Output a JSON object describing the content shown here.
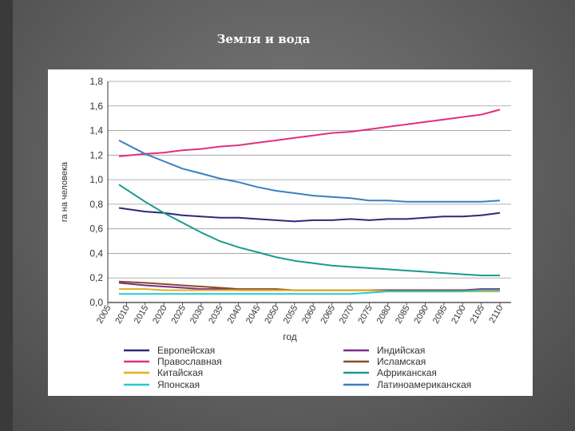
{
  "slide": {
    "title": "Земля и вода"
  },
  "chart_data": {
    "type": "line",
    "title": "",
    "xlabel": "год",
    "ylabel": "га на человека",
    "xlim": [
      2005,
      2113
    ],
    "ylim": [
      0,
      1.8
    ],
    "grid": true,
    "legend_position": "bottom",
    "x_ticks": [
      2005,
      2010,
      2015,
      2020,
      2025,
      2030,
      2035,
      2040,
      2045,
      2050,
      2055,
      2060,
      2065,
      2070,
      2075,
      2080,
      2085,
      2090,
      2095,
      2100,
      2105,
      2110
    ],
    "y_ticks": [
      0.0,
      0.2,
      0.4,
      0.6,
      0.8,
      1.0,
      1.2,
      1.4,
      1.6,
      1.8
    ],
    "y_tick_labels": [
      "0,0",
      "0,2",
      "0,4",
      "0,6",
      "0,8",
      "1,0",
      "1,2",
      "1,4",
      "1,6",
      "1,8"
    ],
    "x": [
      2008,
      2015,
      2020,
      2025,
      2030,
      2035,
      2040,
      2045,
      2050,
      2055,
      2060,
      2065,
      2070,
      2075,
      2080,
      2085,
      2090,
      2095,
      2100,
      2105,
      2110
    ],
    "series": [
      {
        "name": "Европейская",
        "color": "#2b2a7a",
        "values": [
          0.77,
          0.74,
          0.73,
          0.71,
          0.7,
          0.69,
          0.69,
          0.68,
          0.67,
          0.66,
          0.67,
          0.67,
          0.68,
          0.67,
          0.68,
          0.68,
          0.69,
          0.7,
          0.7,
          0.71,
          0.73
        ]
      },
      {
        "name": "Индийская",
        "color": "#7b2d8b",
        "values": [
          0.16,
          0.14,
          0.13,
          0.12,
          0.11,
          0.11,
          0.1,
          0.1,
          0.1,
          0.1,
          0.1,
          0.1,
          0.1,
          0.1,
          0.1,
          0.1,
          0.1,
          0.1,
          0.1,
          0.11,
          0.11
        ]
      },
      {
        "name": "Православная",
        "color": "#e0307e",
        "values": [
          1.19,
          1.21,
          1.22,
          1.24,
          1.25,
          1.27,
          1.28,
          1.3,
          1.32,
          1.34,
          1.36,
          1.38,
          1.39,
          1.41,
          1.43,
          1.45,
          1.47,
          1.49,
          1.51,
          1.53,
          1.57
        ]
      },
      {
        "name": "Исламская",
        "color": "#8b4a2b",
        "values": [
          0.17,
          0.16,
          0.15,
          0.14,
          0.13,
          0.12,
          0.11,
          0.11,
          0.11,
          0.1,
          0.1,
          0.1,
          0.1,
          0.1,
          0.1,
          0.1,
          0.1,
          0.1,
          0.1,
          0.1,
          0.1
        ]
      },
      {
        "name": "Китайская",
        "color": "#e0b020",
        "values": [
          0.11,
          0.11,
          0.1,
          0.1,
          0.1,
          0.1,
          0.1,
          0.1,
          0.1,
          0.1,
          0.1,
          0.1,
          0.1,
          0.1,
          0.09,
          0.09,
          0.09,
          0.09,
          0.09,
          0.09,
          0.09
        ]
      },
      {
        "name": "Африканская",
        "color": "#1a9a8c",
        "values": [
          0.96,
          0.82,
          0.73,
          0.65,
          0.57,
          0.5,
          0.45,
          0.41,
          0.37,
          0.34,
          0.32,
          0.3,
          0.29,
          0.28,
          0.27,
          0.26,
          0.25,
          0.24,
          0.23,
          0.22,
          0.22
        ]
      },
      {
        "name": "Японская",
        "color": "#2bc7d0",
        "values": [
          0.07,
          0.07,
          0.07,
          0.07,
          0.07,
          0.07,
          0.07,
          0.07,
          0.07,
          0.07,
          0.07,
          0.07,
          0.07,
          0.08,
          0.09,
          0.09,
          0.09,
          0.09,
          0.09,
          0.1,
          0.1
        ]
      },
      {
        "name": "Латиноамериканская",
        "color": "#3a7fc0",
        "values": [
          1.32,
          1.21,
          1.15,
          1.09,
          1.05,
          1.01,
          0.98,
          0.94,
          0.91,
          0.89,
          0.87,
          0.86,
          0.85,
          0.83,
          0.83,
          0.82,
          0.82,
          0.82,
          0.82,
          0.82,
          0.83
        ]
      }
    ]
  }
}
